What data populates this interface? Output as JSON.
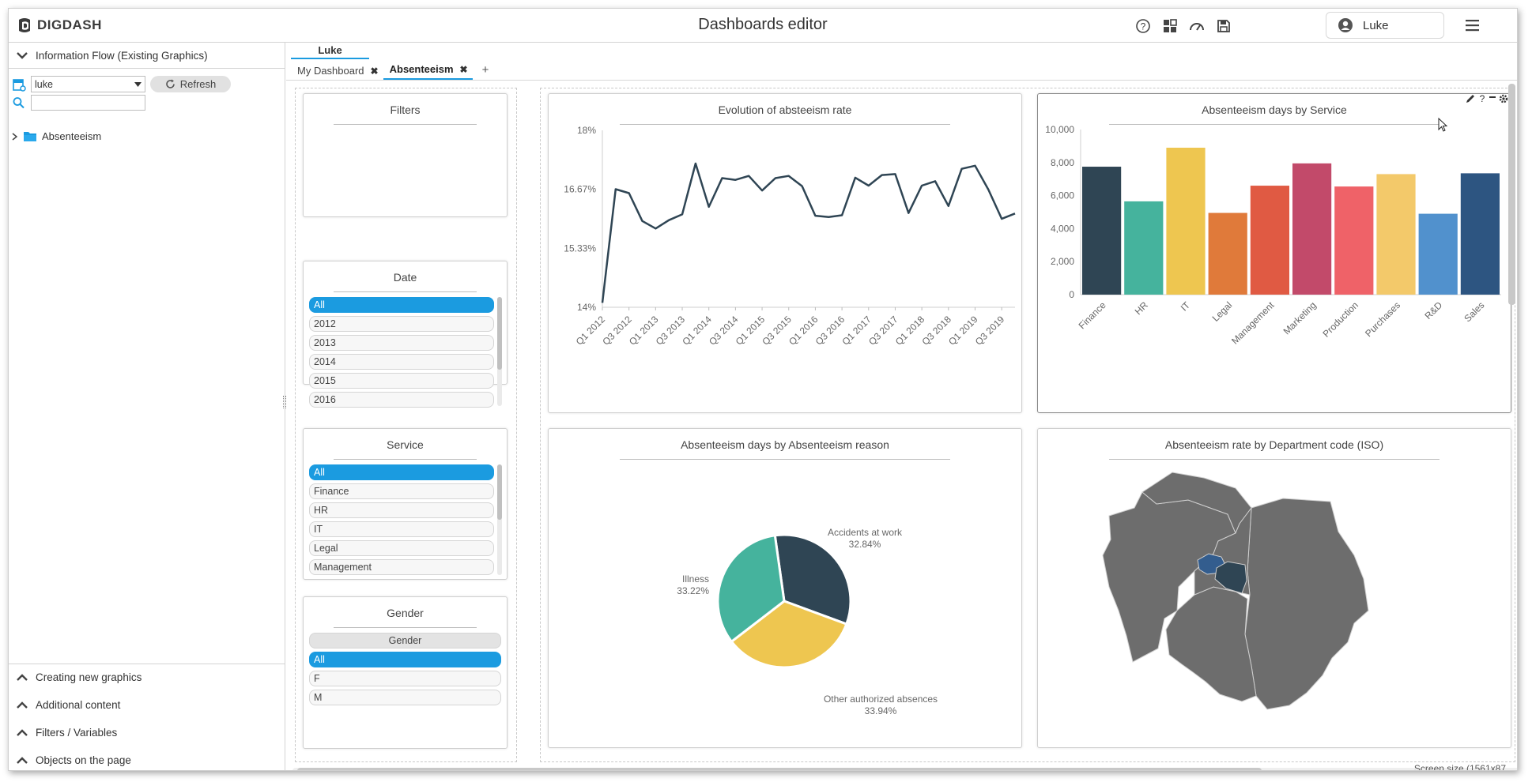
{
  "app": {
    "logo": "DIGDASH",
    "title": "Dashboards editor",
    "user": "Luke"
  },
  "top_icons": [
    "help-icon",
    "widgets-icon",
    "speed-icon",
    "save-icon"
  ],
  "left_panel": {
    "section_title": "Information Flow (Existing Graphics)",
    "user_select": "luke",
    "refresh_label": "Refresh",
    "search_value": "",
    "tree_item": "Absenteeism",
    "accordions": [
      "Creating new graphics",
      "Additional content",
      "Filters / Variables",
      "Objects on the page"
    ]
  },
  "tabs": {
    "owner": "Luke",
    "items": [
      {
        "label": "My Dashboard",
        "active": false
      },
      {
        "label": "Absenteeism",
        "active": true
      }
    ],
    "add": "+"
  },
  "filters": {
    "filters_title": "Filters",
    "date": {
      "title": "Date",
      "items": [
        "All",
        "2012",
        "2013",
        "2014",
        "2015",
        "2016"
      ]
    },
    "service": {
      "title": "Service",
      "items": [
        "All",
        "Finance",
        "HR",
        "IT",
        "Legal",
        "Management"
      ]
    },
    "gender": {
      "title": "Gender",
      "header": "Gender",
      "items": [
        "All",
        "F",
        "M"
      ]
    }
  },
  "charts": {
    "line_title": "Evolution of absteeism rate",
    "bar_title": "Absenteeism days by Service",
    "pie_title": "Absenteeism days by Absenteeism reason",
    "map_title": "Absenteeism rate by Department code (ISO)"
  },
  "screen_size": "Screen size (1561x87",
  "chart_data": [
    {
      "type": "line",
      "title": "Evolution of absteeism rate",
      "x": [
        "Q1 2012",
        "Q2 2012",
        "Q3 2012",
        "Q4 2012",
        "Q1 2013",
        "Q2 2013",
        "Q3 2013",
        "Q4 2013",
        "Q1 2014",
        "Q2 2014",
        "Q3 2014",
        "Q4 2014",
        "Q1 2015",
        "Q2 2015",
        "Q3 2015",
        "Q4 2015",
        "Q1 2016",
        "Q2 2016",
        "Q3 2016",
        "Q4 2016",
        "Q1 2017",
        "Q2 2017",
        "Q3 2017",
        "Q4 2017",
        "Q1 2018",
        "Q2 2018",
        "Q3 2018",
        "Q4 2018",
        "Q1 2019",
        "Q2 2019",
        "Q3 2019",
        "Q4 2019"
      ],
      "xticks": [
        "Q1 2012",
        "Q3 2012",
        "Q1 2013",
        "Q3 2013",
        "Q1 2014",
        "Q3 2014",
        "Q1 2015",
        "Q3 2015",
        "Q1 2016",
        "Q3 2016",
        "Q1 2017",
        "Q3 2017",
        "Q1 2018",
        "Q3 2018",
        "Q1 2019",
        "Q3 2019"
      ],
      "values": [
        14.1,
        16.67,
        16.58,
        15.95,
        15.78,
        15.97,
        16.1,
        17.25,
        16.27,
        16.92,
        16.88,
        16.97,
        16.64,
        16.92,
        16.97,
        16.74,
        16.07,
        16.04,
        16.08,
        16.93,
        16.75,
        16.99,
        17.01,
        16.13,
        16.75,
        16.85,
        16.29,
        17.13,
        17.2,
        16.66,
        16.0,
        16.12
      ],
      "yticks": [
        "14%",
        "15.33%",
        "16.67%",
        "18%"
      ],
      "ylim": [
        14,
        18
      ],
      "color": "#2f4554"
    },
    {
      "type": "bar",
      "title": "Absenteeism days by Service",
      "categories": [
        "Finance",
        "HR",
        "IT",
        "Legal",
        "Management",
        "Marketing",
        "Production",
        "Purchases",
        "R&D",
        "Sales"
      ],
      "values": [
        7750,
        5650,
        8900,
        4950,
        6600,
        7950,
        6550,
        7300,
        4900,
        7350
      ],
      "colors": [
        "#2f4554",
        "#45b39d",
        "#eec650",
        "#e07a3a",
        "#e05a43",
        "#c24a6a",
        "#ef6268",
        "#f3c96a",
        "#5191cd",
        "#2d5581"
      ],
      "yticks": [
        "0",
        "2,000",
        "4,000",
        "6,000",
        "8,000",
        "10,000"
      ],
      "ylim": [
        0,
        10000
      ]
    },
    {
      "type": "pie",
      "title": "Absenteeism days by Absenteeism reason",
      "slices": [
        {
          "label": "Accidents at work",
          "pct": "32.84%",
          "value": 32.84,
          "color": "#2f4554"
        },
        {
          "label": "Other authorized absences",
          "pct": "33.94%",
          "value": 33.94,
          "color": "#eec650"
        },
        {
          "label": "Illness",
          "pct": "33.22%",
          "value": 33.22,
          "color": "#45b39d"
        }
      ]
    }
  ]
}
